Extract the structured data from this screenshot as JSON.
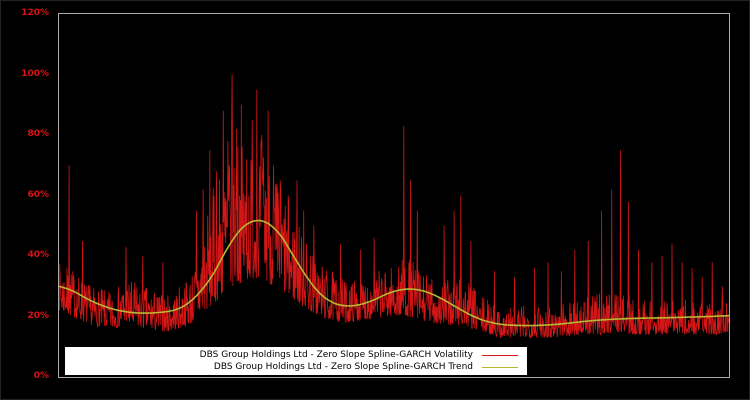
{
  "chart": {
    "background": "#000000",
    "frame_color": "#ababab",
    "tick_label_color": "#dd1111",
    "volatility_color": "#d41616",
    "trend_color": "#b8b832",
    "legend_background": "#ffffff"
  },
  "chart_data": {
    "type": "line",
    "title": "",
    "xlabel": "",
    "ylabel": "",
    "x_axis_labels_visible": false,
    "ylim": [
      0,
      120
    ],
    "ytick_values": [
      0,
      20,
      40,
      60,
      80,
      100,
      120
    ],
    "ytick_labels": [
      "0%",
      "20%",
      "40%",
      "60%",
      "80%",
      "100%",
      "120%"
    ],
    "grid": false,
    "legend_position": "bottom-left-inside",
    "series": [
      {
        "name": "DBS Group Holdings Ltd - Zero Slope Spline-GARCH Volatility",
        "style": "noisy-line",
        "color": "#d41616",
        "points": 1600,
        "noise_seed": 7,
        "envelope_x": [
          0,
          0.02,
          0.05,
          0.08,
          0.1,
          0.13,
          0.16,
          0.18,
          0.2,
          0.22,
          0.24,
          0.26,
          0.28,
          0.3,
          0.32,
          0.34,
          0.36,
          0.38,
          0.4,
          0.43,
          0.46,
          0.49,
          0.52,
          0.55,
          0.58,
          0.6,
          0.63,
          0.66,
          0.7,
          0.74,
          0.78,
          0.81,
          0.83,
          0.86,
          0.89,
          0.92,
          0.95,
          0.98,
          1.0
        ],
        "envelope_low": [
          22,
          20,
          17,
          16,
          17,
          16,
          15,
          16,
          18,
          22,
          26,
          30,
          32,
          33,
          30,
          27,
          24,
          21,
          19,
          18,
          19,
          20,
          20,
          18,
          17,
          17,
          15,
          13,
          13,
          13,
          14,
          14,
          15,
          14,
          14,
          14,
          14,
          14,
          15
        ],
        "envelope_high": [
          38,
          36,
          30,
          28,
          33,
          30,
          27,
          30,
          36,
          55,
          70,
          85,
          75,
          80,
          70,
          60,
          50,
          42,
          36,
          32,
          34,
          36,
          40,
          34,
          32,
          35,
          27,
          23,
          24,
          25,
          26,
          28,
          30,
          26,
          25,
          26,
          25,
          24,
          25
        ],
        "spikes_x": [
          0.015,
          0.035,
          0.1,
          0.125,
          0.155,
          0.205,
          0.215,
          0.225,
          0.235,
          0.245,
          0.252,
          0.258,
          0.265,
          0.272,
          0.28,
          0.288,
          0.295,
          0.303,
          0.312,
          0.32,
          0.33,
          0.342,
          0.355,
          0.365,
          0.38,
          0.42,
          0.45,
          0.47,
          0.515,
          0.525,
          0.535,
          0.575,
          0.59,
          0.6,
          0.615,
          0.65,
          0.68,
          0.71,
          0.73,
          0.75,
          0.77,
          0.79,
          0.81,
          0.825,
          0.838,
          0.85,
          0.865,
          0.885,
          0.9,
          0.915,
          0.93,
          0.945,
          0.96,
          0.975,
          0.99
        ],
        "spikes_y": [
          70,
          45,
          43,
          40,
          38,
          55,
          62,
          75,
          68,
          88,
          78,
          100,
          82,
          90,
          72,
          85,
          95,
          80,
          88,
          70,
          65,
          60,
          65,
          55,
          50,
          44,
          42,
          46,
          83,
          65,
          55,
          50,
          55,
          60,
          45,
          35,
          33,
          36,
          38,
          35,
          42,
          45,
          55,
          62,
          75,
          58,
          42,
          38,
          40,
          44,
          38,
          36,
          33,
          38,
          30
        ]
      },
      {
        "name": "DBS Group Holdings Ltd - Zero Slope Spline-GARCH Trend",
        "style": "smooth-line",
        "color": "#b8b832",
        "x": [
          0,
          0.02,
          0.05,
          0.08,
          0.11,
          0.14,
          0.17,
          0.19,
          0.21,
          0.23,
          0.25,
          0.27,
          0.29,
          0.31,
          0.33,
          0.35,
          0.37,
          0.39,
          0.41,
          0.43,
          0.45,
          0.47,
          0.49,
          0.51,
          0.53,
          0.55,
          0.57,
          0.59,
          0.61,
          0.63,
          0.65,
          0.67,
          0.7,
          0.73,
          0.76,
          0.79,
          0.82,
          0.85,
          0.88,
          0.91,
          0.94,
          0.97,
          1.0
        ],
        "y": [
          30,
          28.5,
          25,
          22.5,
          21.3,
          21.2,
          22,
          24,
          28,
          34,
          42,
          48.5,
          51.5,
          51,
          47,
          40,
          33,
          27.5,
          24.5,
          23.5,
          24,
          25.5,
          27.5,
          28.8,
          29,
          28,
          26,
          23.5,
          21,
          19,
          17.8,
          17.2,
          17,
          17.2,
          17.8,
          18.5,
          19,
          19.3,
          19.5,
          19.6,
          19.8,
          20,
          20.3
        ]
      }
    ]
  }
}
